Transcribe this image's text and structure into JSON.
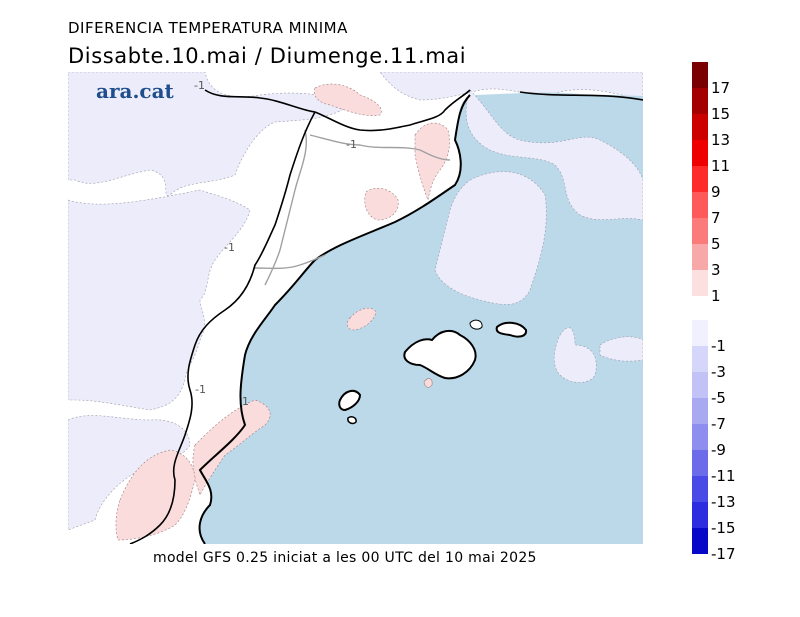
{
  "title": "DIFERENCIA TEMPERATURA MINIMA",
  "subtitle": "Dissabte.10.mai / Diumenge.11.mai",
  "footer": "model GFS 0.25 iniciat a les 00 UTC del 10 mai 2025",
  "logo_text": "ara.cat",
  "contour_labels": [
    "-1",
    "-1",
    "-1",
    "-1",
    "1"
  ],
  "legend": {
    "positive": [
      {
        "label": "17",
        "color": "#7a0000"
      },
      {
        "label": "15",
        "color": "#a40000"
      },
      {
        "label": "13",
        "color": "#cd0000"
      },
      {
        "label": "11",
        "color": "#ee0000"
      },
      {
        "label": "9",
        "color": "#ff2a2a"
      },
      {
        "label": "7",
        "color": "#ff5a5a"
      },
      {
        "label": "5",
        "color": "#fb7a7a"
      },
      {
        "label": "3",
        "color": "#f7a8a8"
      },
      {
        "label": "1",
        "color": "#fce0e0"
      }
    ],
    "negative": [
      {
        "label": "-1",
        "color": "#f0f0ff"
      },
      {
        "label": "-3",
        "color": "#d6d6fa"
      },
      {
        "label": "-5",
        "color": "#c2c2f6"
      },
      {
        "label": "-7",
        "color": "#a9a9f2"
      },
      {
        "label": "-9",
        "color": "#8e8eee"
      },
      {
        "label": "-11",
        "color": "#6c6cea"
      },
      {
        "label": "-13",
        "color": "#4a4ae6"
      },
      {
        "label": "-15",
        "color": "#2c2ce0"
      },
      {
        "label": "-17",
        "color": "#0808c8"
      }
    ]
  },
  "colors": {
    "sea": "#bcd9ea",
    "land_neutral": "#ffffff",
    "cool_area": "#ececfa",
    "warm_area": "#fbdcdc",
    "coastline": "#000000",
    "borders": "#a0a0a0"
  }
}
